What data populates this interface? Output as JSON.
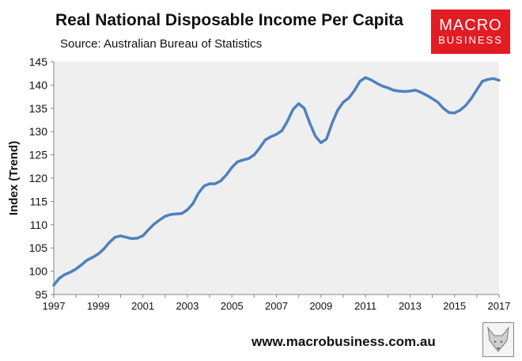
{
  "header": {
    "title": "Real National Disposable Income Per Capita",
    "subtitle": "Source: Australian Bureau of Statistics"
  },
  "logo": {
    "line1": "MACRO",
    "line2": "BUSINESS",
    "color": "#e21c23"
  },
  "footer": {
    "website": "www.macrobusiness.com.au"
  },
  "chart_data": {
    "type": "line",
    "title": "Real National Disposable Income Per Capita",
    "subtitle": "Source: Australian Bureau of Statistics",
    "xlabel": "",
    "ylabel": "Index (Trend)",
    "xlim": [
      1997,
      2017
    ],
    "ylim": [
      95,
      145
    ],
    "x_ticks": [
      "1997",
      "1999",
      "2001",
      "2003",
      "2005",
      "2007",
      "2009",
      "2011",
      "2013",
      "2015",
      "2017"
    ],
    "y_ticks": [
      "95",
      "100",
      "105",
      "110",
      "115",
      "120",
      "125",
      "130",
      "135",
      "140",
      "145"
    ],
    "grid": false,
    "plot_background": "#efefef",
    "line_color": "#4f81bd",
    "series": [
      {
        "x": [
          1997.0,
          1997.25,
          1997.5,
          1997.75,
          1998.0,
          1998.25,
          1998.5,
          1998.75,
          1999.0,
          1999.25,
          1999.5,
          1999.75,
          2000.0,
          2000.25,
          2000.5,
          2000.75,
          2001.0,
          2001.25,
          2001.5,
          2001.75,
          2002.0,
          2002.25,
          2002.5,
          2002.75,
          2003.0,
          2003.25,
          2003.5,
          2003.75,
          2004.0,
          2004.25,
          2004.5,
          2004.75,
          2005.0,
          2005.25,
          2005.5,
          2005.75,
          2006.0,
          2006.25,
          2006.5,
          2006.75,
          2007.0,
          2007.25,
          2007.5,
          2007.75,
          2008.0,
          2008.25,
          2008.5,
          2008.75,
          2009.0,
          2009.25,
          2009.5,
          2009.75,
          2010.0,
          2010.25,
          2010.5,
          2010.75,
          2011.0,
          2011.25,
          2011.5,
          2011.75,
          2012.0,
          2012.25,
          2012.5,
          2012.75,
          2013.0,
          2013.25,
          2013.5,
          2013.75,
          2014.0,
          2014.25,
          2014.5,
          2014.75,
          2015.0,
          2015.25,
          2015.5,
          2015.75,
          2016.0,
          2016.25,
          2016.5,
          2016.75,
          2017.0
        ],
        "values": [
          97.0,
          98.5,
          99.3,
          99.8,
          100.5,
          101.4,
          102.4,
          103.0,
          103.7,
          104.8,
          106.2,
          107.3,
          107.6,
          107.3,
          107.0,
          107.1,
          107.6,
          108.9,
          110.1,
          111.0,
          111.8,
          112.2,
          112.3,
          112.4,
          113.2,
          114.5,
          116.8,
          118.3,
          118.8,
          118.8,
          119.4,
          120.7,
          122.3,
          123.5,
          123.9,
          124.2,
          125.0,
          126.5,
          128.2,
          128.9,
          129.4,
          130.2,
          132.3,
          134.8,
          136.0,
          135.0,
          131.8,
          129.0,
          127.6,
          128.4,
          131.8,
          134.6,
          136.3,
          137.2,
          138.8,
          140.8,
          141.6,
          141.1,
          140.4,
          139.8,
          139.4,
          138.9,
          138.7,
          138.6,
          138.7,
          138.9,
          138.4,
          137.8,
          137.1,
          136.3,
          135.0,
          134.1,
          134.0,
          134.6,
          135.6,
          137.1,
          139.0,
          140.8,
          141.2,
          141.4,
          141.0
        ]
      }
    ]
  }
}
